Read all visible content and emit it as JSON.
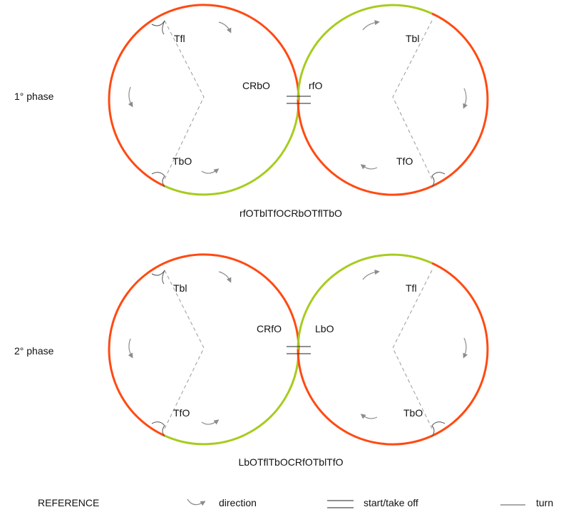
{
  "colors": {
    "orange": "#ff4a12",
    "green": "#a6cc1f",
    "grey": "#8c8c8c"
  },
  "phase1": {
    "label": "1° phase",
    "left": {
      "top": "Tfl",
      "bottom": "TbO",
      "center": "CRbO"
    },
    "right": {
      "top": "Tbl",
      "bottom": "TfO",
      "center": "rfO"
    },
    "sequence": "rfOTblTfOCRbOTflTbO"
  },
  "phase2": {
    "label": "2° phase",
    "left": {
      "top": "Tbl",
      "bottom": "TfO",
      "center": "CRfO"
    },
    "right": {
      "top": "Tfl",
      "bottom": "TbO",
      "center": "LbO"
    },
    "sequence": "LbOTflTbOCRfOTblTfO"
  },
  "reference": {
    "title": "REFERENCE",
    "direction": "direction",
    "start": "start/take off",
    "turn": "turn"
  }
}
